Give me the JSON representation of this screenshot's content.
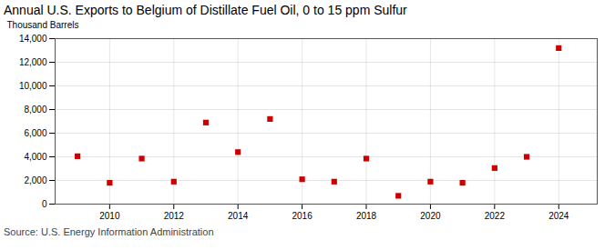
{
  "chart_data": {
    "type": "scatter",
    "title": "Annual U.S. Exports to Belgium of Distillate Fuel Oil, 0 to 15 ppm Sulfur",
    "ylabel": "Thousand Barrels",
    "annotation": "Source: U.S. Energy Information Administration",
    "x": [
      2009,
      2010,
      2011,
      2012,
      2013,
      2014,
      2015,
      2016,
      2017,
      2018,
      2019,
      2020,
      2021,
      2022,
      2023,
      2024
    ],
    "values": [
      4050,
      1800,
      3850,
      1900,
      6900,
      4400,
      7200,
      2100,
      1900,
      3850,
      700,
      1900,
      1800,
      3050,
      4000,
      13200
    ],
    "color": "#cc0000",
    "marker": "square",
    "xlim": [
      2008.3,
      2025.2
    ],
    "xticks": [
      2010,
      2012,
      2014,
      2016,
      2018,
      2020,
      2022,
      2024
    ],
    "ylim": [
      0,
      14000
    ],
    "yticks": [
      0,
      {
        "value": 2000,
        "label": "2,000"
      },
      {
        "value": 4000,
        "label": "4,000"
      },
      {
        "value": 6000,
        "label": "6,000"
      },
      {
        "value": 8000,
        "label": "8,000"
      },
      {
        "value": 10000,
        "label": "10,000"
      },
      {
        "value": 12000,
        "label": "12,000"
      },
      {
        "value": 14000,
        "label": "14,000"
      }
    ],
    "grid": true
  }
}
